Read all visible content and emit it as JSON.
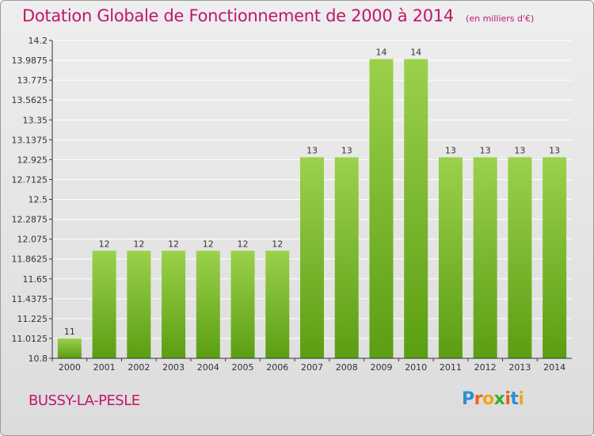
{
  "header": {
    "title": "Dotation Globale de Fonctionnement de 2000 à 2014",
    "subtitle": "(en milliers d'€)"
  },
  "commune": "BUSSY-LA-PESLE",
  "brand": {
    "letters": [
      "P",
      "r",
      "o",
      "x",
      "i",
      "t",
      "i"
    ],
    "colors": [
      "#2a8fd6",
      "#e8641b",
      "#f2a51a",
      "#3aaa35",
      "#e8641b",
      "#2a8fd6",
      "#f2a51a"
    ]
  },
  "colors": {
    "title": "#c0176a",
    "bar_top": "#9bd14b",
    "bar_bottom": "#5b9e12",
    "grid": "#ffffff"
  },
  "chart_data": {
    "type": "bar",
    "title": "Dotation Globale de Fonctionnement de 2000 à 2014",
    "subtitle": "(en milliers d'€)",
    "categories": [
      "2000",
      "2001",
      "2002",
      "2003",
      "2004",
      "2005",
      "2006",
      "2007",
      "2008",
      "2009",
      "2010",
      "2011",
      "2012",
      "2013",
      "2014"
    ],
    "values": [
      11,
      12,
      12,
      12,
      12,
      12,
      12,
      13,
      13,
      14,
      14,
      13,
      13,
      13,
      13
    ],
    "bar_values": [
      11.0125,
      11.95,
      11.95,
      11.95,
      11.95,
      11.95,
      11.95,
      12.95,
      12.95,
      14,
      14,
      12.95,
      12.95,
      12.95,
      12.95
    ],
    "y_ticks": [
      "10.8",
      "11.0125",
      "11.225",
      "11.4375",
      "11.65",
      "11.8625",
      "12.075",
      "12.2875",
      "12.5",
      "12.7125",
      "12.925",
      "13.1375",
      "13.35",
      "13.5625",
      "13.775",
      "13.9875",
      "14.2"
    ],
    "ylim": [
      10.8,
      14.2
    ],
    "xlabel": "",
    "ylabel": "",
    "grid": true,
    "legend": "none"
  }
}
